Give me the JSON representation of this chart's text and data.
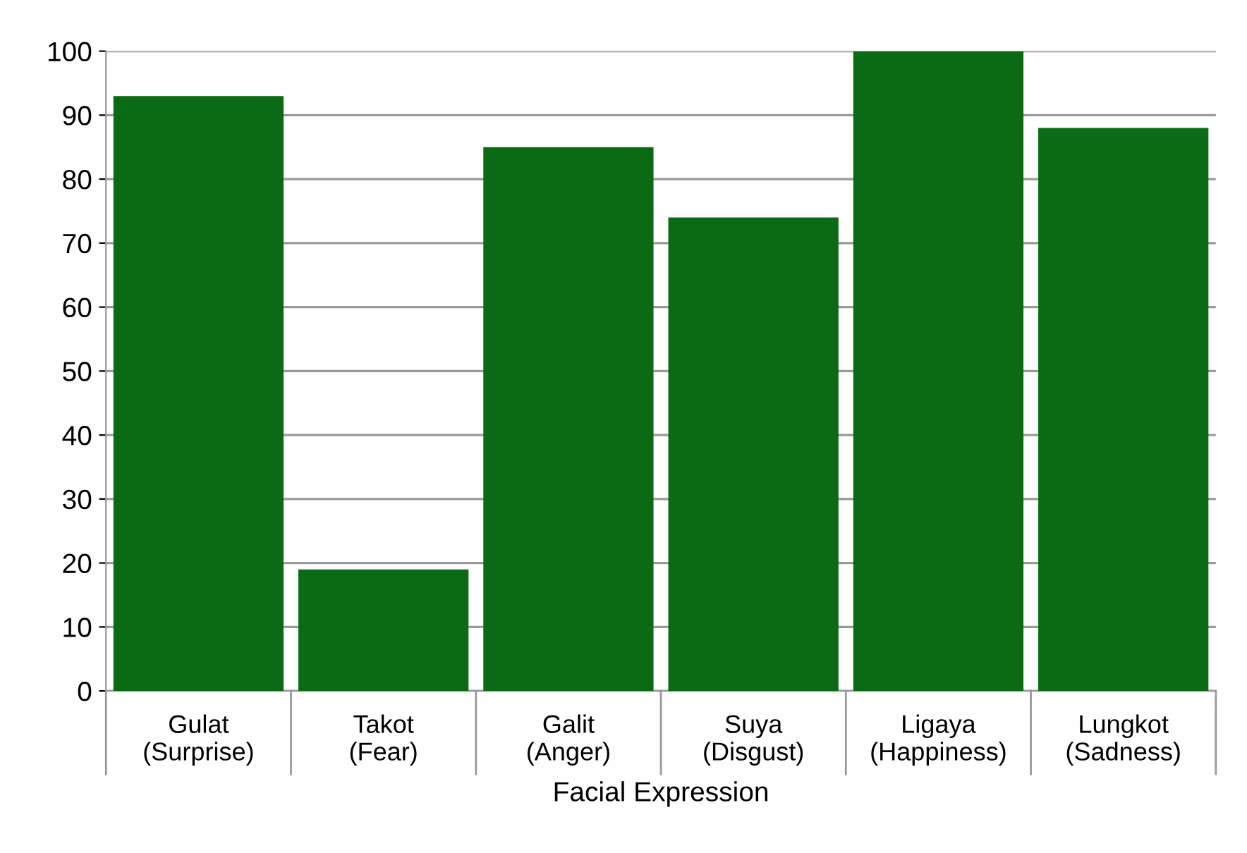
{
  "chart_data": {
    "type": "bar",
    "xlabel": "Facial Expression",
    "categories": [
      "Gulat\n(Surprise)",
      "Takot\n(Fear)",
      "Galit\n(Anger)",
      "Suya\n(Disgust)",
      "Ligaya\n(Happiness)",
      "Lungkot\n(Sadness)"
    ],
    "values": [
      93,
      19,
      85,
      74,
      100,
      88
    ],
    "color": "#0a6b14",
    "ylim": [
      0,
      100
    ],
    "yticks": [
      0,
      10,
      20,
      30,
      40,
      50,
      60,
      70,
      80,
      90,
      100
    ],
    "grid": "y"
  }
}
